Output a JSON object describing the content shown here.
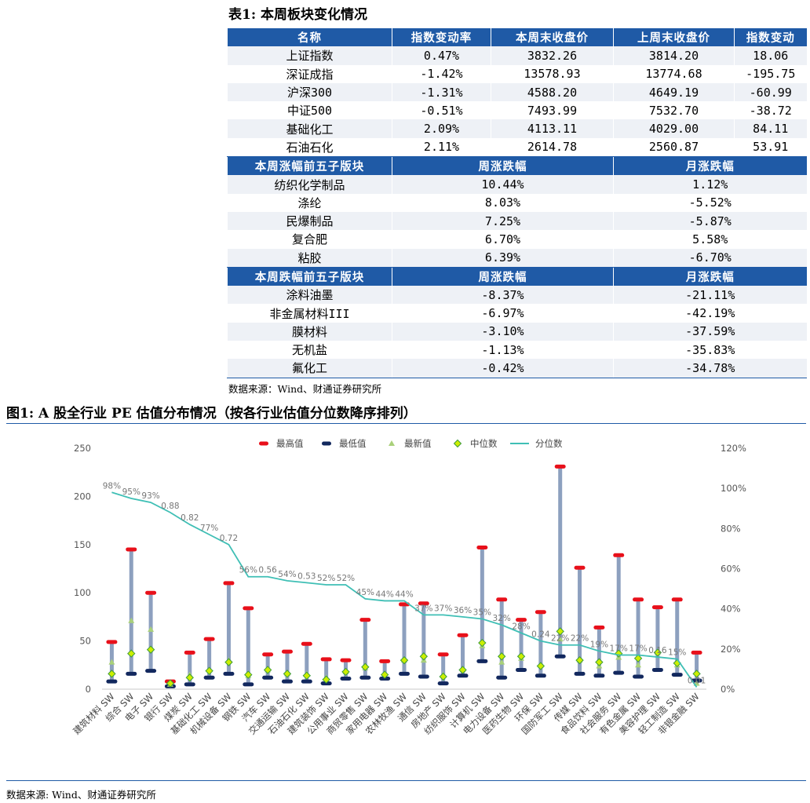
{
  "table": {
    "caption": "表1: 本周板块变化情况",
    "header1": [
      "名称",
      "指数变动率",
      "本周末收盘价",
      "上周末收盘价",
      "指数变动"
    ],
    "indices": [
      {
        "name": "上证指数",
        "chg": "0.47%",
        "close": "3832.26",
        "prev": "3814.20",
        "diff": "18.06"
      },
      {
        "name": "深证成指",
        "chg": "-1.42%",
        "close": "13578.93",
        "prev": "13774.68",
        "diff": "-195.75"
      },
      {
        "name": "沪深300",
        "chg": "-1.31%",
        "close": "4588.20",
        "prev": "4649.19",
        "diff": "-60.99"
      },
      {
        "name": "中证500",
        "chg": "-0.51%",
        "close": "7493.99",
        "prev": "7532.70",
        "diff": "-38.72"
      },
      {
        "name": "基础化工",
        "chg": "2.09%",
        "close": "4113.11",
        "prev": "4029.00",
        "diff": "84.11"
      },
      {
        "name": "石油石化",
        "chg": "2.11%",
        "close": "2614.78",
        "prev": "2560.87",
        "diff": "53.91"
      }
    ],
    "header2": [
      "本周涨幅前五子版块",
      "周涨跌幅",
      "月涨跌幅"
    ],
    "gainers": [
      {
        "name": "纺织化学制品",
        "week": "10.44%",
        "month": "1.12%"
      },
      {
        "name": "涤纶",
        "week": "8.03%",
        "month": "-5.52%"
      },
      {
        "name": "民爆制品",
        "week": "7.25%",
        "month": "-5.87%"
      },
      {
        "name": "复合肥",
        "week": "6.70%",
        "month": "5.58%"
      },
      {
        "name": "粘胶",
        "week": "6.39%",
        "month": "-6.70%"
      }
    ],
    "header3": [
      "本周跌幅前五子版块",
      "周涨跌幅",
      "月涨跌幅"
    ],
    "losers": [
      {
        "name": "涂料油墨",
        "week": "-8.37%",
        "month": "-21.11%"
      },
      {
        "name": "非金属材料III",
        "week": "-6.97%",
        "month": "-42.19%"
      },
      {
        "name": "膜材料",
        "week": "-3.10%",
        "month": "-37.59%"
      },
      {
        "name": "无机盐",
        "week": "-1.13%",
        "month": "-35.83%"
      },
      {
        "name": "氟化工",
        "week": "-0.42%",
        "month": "-34.78%"
      }
    ],
    "source": "数据来源：Wind、财通证券研究所"
  },
  "figure": {
    "caption": "图1: A 股全行业 PE 估值分布情况（按各行业估值分位数降序排列）",
    "source": "数据来源: Wind、财通证券研究所"
  },
  "chart_data": {
    "type": "line",
    "legend": [
      "最高值",
      "最低值",
      "最新值",
      "中位数",
      "分位数"
    ],
    "legend_position": "top",
    "colors": {
      "max": "#e8101a",
      "min": "#12285e",
      "latest": "#a9d07a",
      "median": "#ccee00",
      "pct": "#3fbfb5",
      "bar": "#8da0bf"
    },
    "categories": [
      "建筑材料 SW",
      "综合 SW",
      "电子 SW",
      "银行 SW",
      "煤炭 SW",
      "基础化工 SW",
      "机械设备 SW",
      "钢铁 SW",
      "汽车 SW",
      "交通运输 SW",
      "石油石化 SW",
      "建筑装饰 SW",
      "公用事业 SW",
      "商贸零售 SW",
      "家用电器 SW",
      "农林牧渔 SW",
      "通信 SW",
      "房地产 SW",
      "纺织服饰 SW",
      "计算机 SW",
      "电力设备 SW",
      "医药生物 SW",
      "环保 SW",
      "国防军工 SW",
      "传媒 SW",
      "食品饮料 SW",
      "社会服务 SW",
      "有色金属 SW",
      "美容护理 SW",
      "轻工制造 SW",
      "非银金融 SW"
    ],
    "max": [
      49,
      145,
      100,
      8,
      38,
      52,
      110,
      84,
      36,
      39,
      47,
      31,
      30,
      72,
      29,
      88,
      89,
      36,
      56,
      147,
      93,
      72,
      80,
      231,
      126,
      64,
      139,
      93,
      85,
      93,
      38
    ],
    "min": [
      8,
      16,
      19,
      3,
      5,
      12,
      16,
      5,
      12,
      8,
      8,
      6,
      11,
      12,
      11,
      16,
      13,
      6,
      14,
      29,
      12,
      20,
      14,
      34,
      16,
      14,
      17,
      13,
      20,
      15,
      9
    ],
    "latest": [
      28,
      71,
      62,
      5,
      15,
      20,
      30,
      14,
      20,
      16,
      16,
      12,
      18,
      22,
      16,
      30,
      30,
      15,
      20,
      45,
      28,
      32,
      25,
      52,
      30,
      24,
      33,
      25,
      38,
      25,
      6
    ],
    "median": [
      16,
      37,
      41,
      6,
      12,
      19,
      28,
      15,
      20,
      16,
      14,
      10,
      18,
      23,
      15,
      30,
      34,
      13,
      20,
      48,
      34,
      34,
      24,
      60,
      30,
      28,
      37,
      32,
      38,
      27,
      16
    ],
    "percentile": [
      0.98,
      0.95,
      0.93,
      0.88,
      0.82,
      0.77,
      0.72,
      0.56,
      0.56,
      0.54,
      0.53,
      0.52,
      0.52,
      0.45,
      0.44,
      0.44,
      0.37,
      0.37,
      0.36,
      0.35,
      0.32,
      0.28,
      0.24,
      0.22,
      0.22,
      0.19,
      0.17,
      0.17,
      0.16,
      0.15,
      0.01
    ],
    "percentile_labels": [
      "98%",
      "95%",
      "93%",
      "0.88",
      "0.82",
      "77%",
      "0.72",
      "56%",
      "0.56",
      "54%",
      "0.53",
      "52%",
      "52%",
      "45%",
      "44%",
      "44%",
      "37%",
      "37%",
      "36%",
      "35%",
      "32%",
      "28%",
      "0.24",
      "22%",
      "22%",
      "19%",
      "17%",
      "17%",
      "0.16",
      "15%",
      "0.01"
    ],
    "y_left": {
      "min": 0,
      "max": 250,
      "ticks": [
        "0",
        "50",
        "100",
        "150",
        "200",
        "250"
      ]
    },
    "y_right": {
      "min": 0,
      "max": 1.2,
      "ticks": [
        "0%",
        "20%",
        "40%",
        "60%",
        "80%",
        "100%",
        "120%"
      ]
    },
    "grid": false
  }
}
